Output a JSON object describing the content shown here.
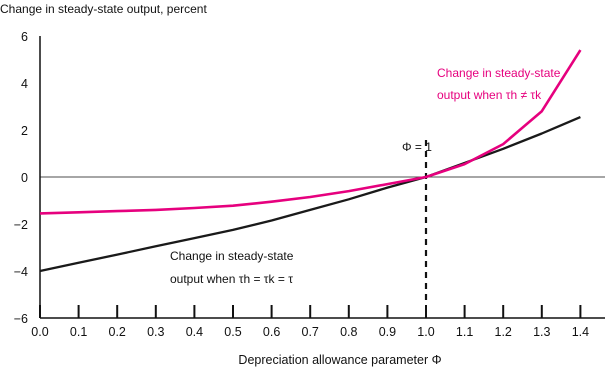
{
  "chart_data": {
    "type": "line",
    "title": "",
    "ylabel": "Change in steady-state output, percent",
    "xlabel": "Depreciation allowance parameter Φ",
    "xlim": [
      0.0,
      1.45
    ],
    "ylim": [
      -6,
      6
    ],
    "x_ticks": [
      "0.0",
      "0.1",
      "0.2",
      "0.3",
      "0.4",
      "0.5",
      "0.6",
      "0.7",
      "0.8",
      "0.9",
      "1.0",
      "1.1",
      "1.2",
      "1.3",
      "1.4"
    ],
    "y_ticks": [
      "6",
      "4",
      "2",
      "0",
      "−2",
      "−4",
      "−6"
    ],
    "y_tick_values": [
      6,
      4,
      2,
      0,
      -2,
      -4,
      -6
    ],
    "grid": false,
    "series": [
      {
        "name": "Change in steady-state output when τh = τk = τ",
        "color": "#1a1a1a",
        "x": [
          0.0,
          0.1,
          0.2,
          0.3,
          0.4,
          0.5,
          0.6,
          0.7,
          0.8,
          0.9,
          1.0,
          1.1,
          1.2,
          1.3,
          1.4
        ],
        "y": [
          -4.0,
          -3.65,
          -3.3,
          -2.95,
          -2.6,
          -2.25,
          -1.85,
          -1.4,
          -0.95,
          -0.45,
          0.0,
          0.6,
          1.2,
          1.85,
          2.55
        ]
      },
      {
        "name": "Change in steady-state output when τh ≠ τk",
        "color": "#e6007e",
        "x": [
          0.0,
          0.1,
          0.2,
          0.3,
          0.4,
          0.5,
          0.6,
          0.7,
          0.8,
          0.9,
          1.0,
          1.1,
          1.2,
          1.3,
          1.4
        ],
        "y": [
          -1.55,
          -1.5,
          -1.45,
          -1.4,
          -1.32,
          -1.22,
          -1.05,
          -0.85,
          -0.6,
          -0.3,
          0.0,
          0.55,
          1.4,
          2.8,
          5.4
        ]
      }
    ],
    "reference_line": {
      "x": 1.0,
      "label": "Φ = 1"
    },
    "annotations": {
      "black": {
        "line1": "Change in steady-state",
        "line2_prefix": "output when ",
        "line2_math": "τh = τk = τ"
      },
      "pink": {
        "line1": "Change in steady-state",
        "line2_prefix": "output when ",
        "line2_math": "τh ≠ τk"
      }
    }
  }
}
